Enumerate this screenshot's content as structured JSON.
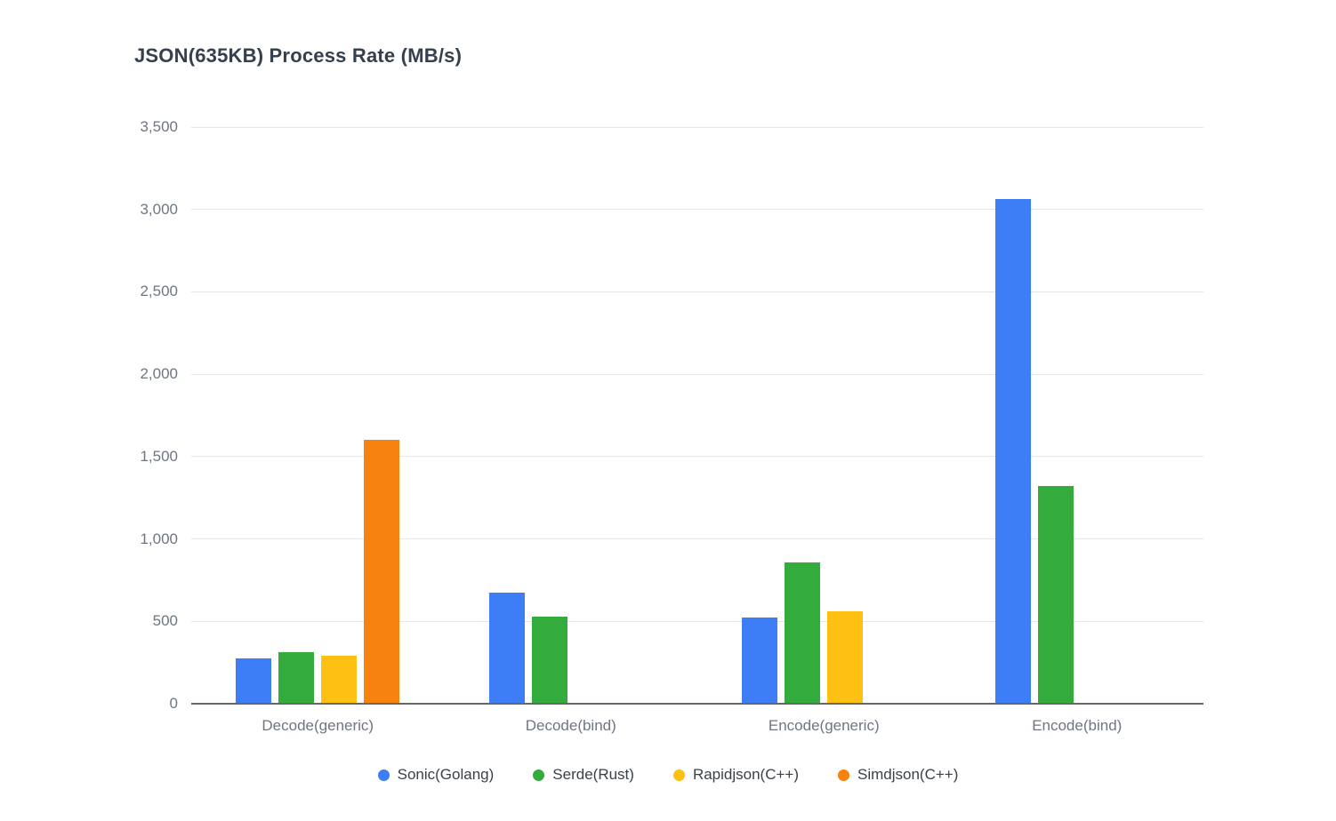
{
  "title": "JSON(635KB) Process Rate (MB/s)",
  "colors": {
    "blue": "#3d7ef7",
    "green": "#33ab3d",
    "yellow": "#fdc013",
    "orange": "#f7820d"
  },
  "chart_data": {
    "type": "bar",
    "title": "JSON(635KB) Process Rate (MB/s)",
    "categories": [
      "Decode(generic)",
      "Decode(bind)",
      "Encode(generic)",
      "Encode(bind)"
    ],
    "series": [
      {
        "name": "Sonic(Golang)",
        "color": "#3d7ef7",
        "values": [
          275,
          675,
          525,
          3065
        ]
      },
      {
        "name": "Serde(Rust)",
        "color": "#33ab3d",
        "values": [
          315,
          530,
          855,
          1320
        ]
      },
      {
        "name": "Rapidjson(C++)",
        "color": "#fdc013",
        "values": [
          290,
          null,
          560,
          null
        ]
      },
      {
        "name": "Simdjson(C++)",
        "color": "#f7820d",
        "values": [
          1600,
          null,
          null,
          null
        ]
      }
    ],
    "xlabel": "",
    "ylabel": "",
    "ylim": [
      0,
      3500
    ],
    "ytick_step": 500,
    "ytick_labels": [
      "0",
      "500",
      "1,000",
      "1,500",
      "2,000",
      "2,500",
      "3,000",
      "3,500"
    ],
    "grid": true,
    "legend_position": "bottom"
  }
}
